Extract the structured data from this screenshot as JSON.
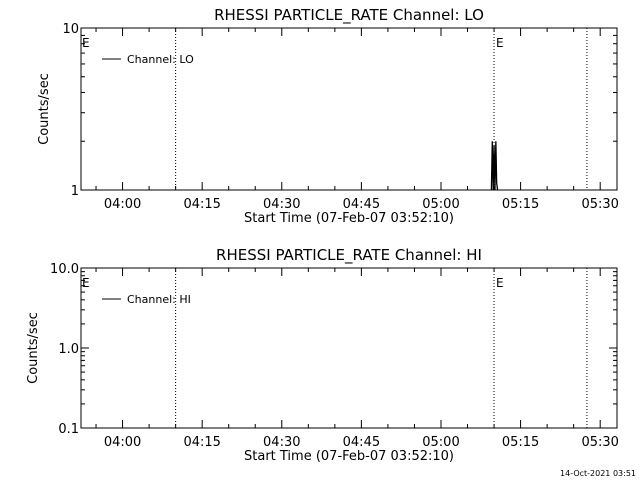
{
  "chart_data": [
    {
      "type": "line",
      "title": "RHESSI PARTICLE_RATE Channel: LO",
      "xlabel": "Start Time (07-Feb-07 03:52:10)",
      "ylabel": "Counts/sec",
      "x_tick_labels": [
        "04:00",
        "04:15",
        "04:30",
        "04:45",
        "05:00",
        "05:15",
        "05:30"
      ],
      "x_ticks_min": [
        7.833,
        22.833,
        37.833,
        52.833,
        67.833,
        82.833,
        97.833
      ],
      "xlim": [
        0,
        101
      ],
      "yscale": "log",
      "ylim": [
        1,
        10
      ],
      "y_tick_labels": [
        "1",
        "10"
      ],
      "y_ticks": [
        1,
        10
      ],
      "legend": {
        "entries": [
          "Channel: LO"
        ],
        "placement": "top-left"
      },
      "event_lines": [
        {
          "x": 17.83,
          "label": ""
        },
        {
          "x": 77.83,
          "label": "E"
        },
        {
          "x": 95.33,
          "label": ""
        }
      ],
      "left_marker_label": "E",
      "series": [
        {
          "name": "Channel: LO",
          "x": [
            77.33,
            77.5,
            77.67,
            77.83,
            78.0,
            78.17,
            78.33,
            78.5
          ],
          "y": [
            1,
            2,
            1,
            1.9,
            1,
            2,
            1.1,
            1
          ]
        }
      ]
    },
    {
      "type": "line",
      "title": "RHESSI PARTICLE_RATE Channel: HI",
      "xlabel": "Start Time (07-Feb-07 03:52:10)",
      "ylabel": "Counts/sec",
      "x_tick_labels": [
        "04:00",
        "04:15",
        "04:30",
        "04:45",
        "05:00",
        "05:15",
        "05:30"
      ],
      "x_ticks_min": [
        7.833,
        22.833,
        37.833,
        52.833,
        67.833,
        82.833,
        97.833
      ],
      "xlim": [
        0,
        101
      ],
      "yscale": "log",
      "ylim": [
        0.1,
        10
      ],
      "y_tick_labels": [
        "0.1",
        "1.0",
        "10.0"
      ],
      "y_ticks": [
        0.1,
        1,
        10
      ],
      "legend": {
        "entries": [
          "Channel: HI"
        ],
        "placement": "top-left"
      },
      "event_lines": [
        {
          "x": 17.83,
          "label": ""
        },
        {
          "x": 77.83,
          "label": "E"
        },
        {
          "x": 95.33,
          "label": ""
        }
      ],
      "left_marker_label": "E",
      "series": [
        {
          "name": "Channel: HI",
          "x": [],
          "y": []
        }
      ]
    }
  ],
  "footer": {
    "timestamp": "14-Oct-2021 03:51"
  }
}
